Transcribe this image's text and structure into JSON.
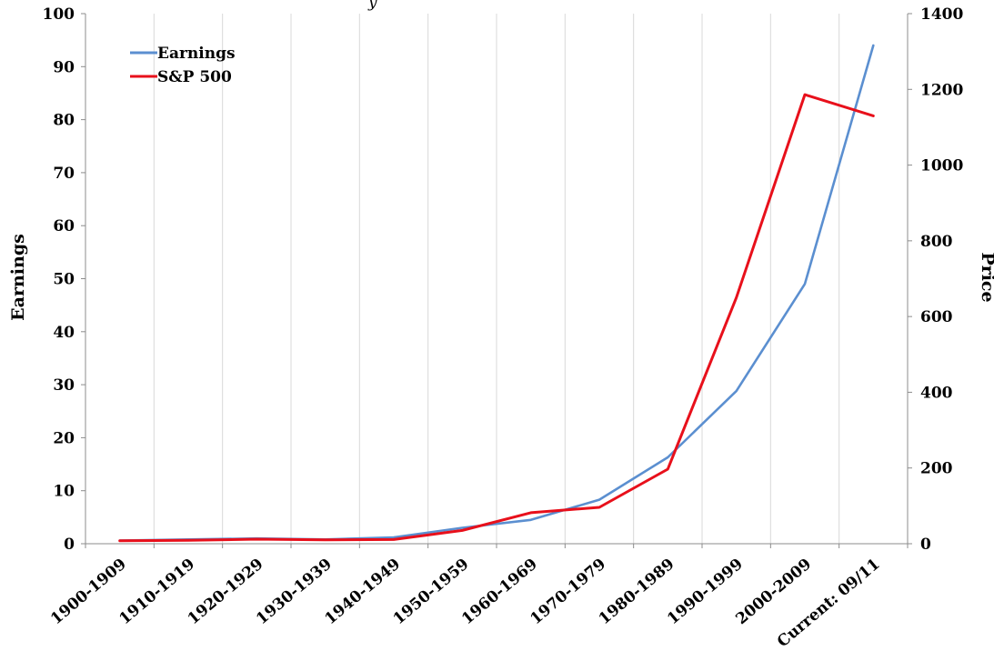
{
  "chart_data": {
    "type": "line",
    "title_fragment": "y",
    "categories": [
      "1900-1909",
      "1910-1919",
      "1920-1929",
      "1930-1939",
      "1940-1949",
      "1950-1959",
      "1960-1969",
      "1970-1979",
      "1980-1989",
      "1990-1999",
      "2000-2009",
      "Current: 09/11"
    ],
    "left_axis": {
      "label": "Earnings",
      "min": 0,
      "max": 100,
      "ticks": [
        0,
        10,
        20,
        30,
        40,
        50,
        60,
        70,
        80,
        90,
        100
      ]
    },
    "right_axis": {
      "label": "Price",
      "min": 0,
      "max": 1400,
      "ticks": [
        0,
        200,
        400,
        600,
        800,
        1000,
        1200,
        1400
      ]
    },
    "series": [
      {
        "name": "Earnings",
        "axis": "left",
        "color": "#5B8FD0",
        "values": [
          0.6,
          0.8,
          1.0,
          0.8,
          1.2,
          3.0,
          4.5,
          8.3,
          16.3,
          28.8,
          49.0,
          94.0
        ]
      },
      {
        "name": "S&P 500",
        "axis": "right",
        "color": "#E8101B",
        "values": [
          8,
          9,
          12,
          10,
          11,
          35,
          82,
          96,
          197,
          650,
          1186,
          1130
        ]
      }
    ],
    "grid": {
      "vertical": true,
      "horizontal": false
    },
    "legend_position": "top-left"
  }
}
